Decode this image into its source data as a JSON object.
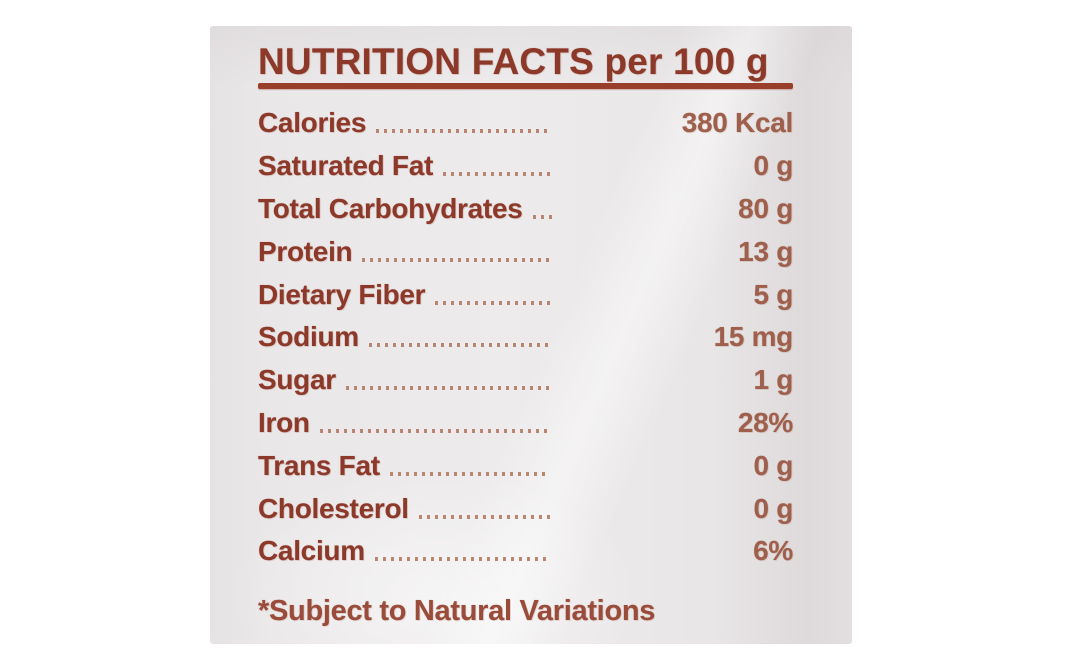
{
  "label": {
    "title": "NUTRITION FACTS per 100 g",
    "rows": [
      {
        "name": "Calories",
        "value": "380 Kcal"
      },
      {
        "name": "Saturated Fat",
        "value": "0 g"
      },
      {
        "name": "Total Carbohydrates",
        "value": "80 g"
      },
      {
        "name": "Protein",
        "value": "13 g"
      },
      {
        "name": "Dietary Fiber",
        "value": "5 g"
      },
      {
        "name": "Sodium",
        "value": "15 mg"
      },
      {
        "name": "Sugar",
        "value": "1 g"
      },
      {
        "name": "Iron",
        "value": "28%"
      },
      {
        "name": "Trans Fat",
        "value": "0 g"
      },
      {
        "name": "Cholesterol",
        "value": "0 g"
      },
      {
        "name": "Calcium",
        "value": "6%"
      }
    ],
    "footnote": "*Subject to Natural Variations"
  },
  "colors": {
    "ink": "#8c392a",
    "value_ink": "#9e604c",
    "dot": "#b47a62",
    "rule": "#9a3e2c",
    "footnote_ink": "#9a4c3a",
    "bag": "#e9e6e7",
    "background": "#ffffff"
  }
}
